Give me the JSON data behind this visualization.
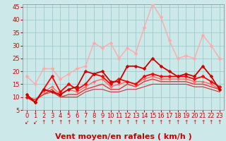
{
  "xlabel": "Vent moyen/en rafales ( km/h )",
  "background_color": "#cce8e8",
  "grid_color": "#99cccc",
  "xlim": [
    -0.5,
    23.5
  ],
  "ylim": [
    5,
    46
  ],
  "yticks": [
    5,
    10,
    15,
    20,
    25,
    30,
    35,
    40,
    45
  ],
  "xticks": [
    0,
    1,
    2,
    3,
    4,
    5,
    6,
    7,
    8,
    9,
    10,
    11,
    12,
    13,
    14,
    15,
    16,
    17,
    18,
    19,
    20,
    21,
    22,
    23
  ],
  "lines": [
    {
      "x": [
        0,
        1,
        2,
        3,
        4,
        5,
        6,
        7,
        8,
        9,
        10,
        11,
        12,
        13,
        14,
        15,
        16,
        17,
        18,
        19,
        20,
        21,
        22,
        23
      ],
      "y": [
        18,
        15,
        21,
        21,
        17,
        19,
        21,
        22,
        31,
        29,
        31,
        25,
        29,
        27,
        37,
        46,
        41,
        32,
        25,
        26,
        25,
        34,
        30,
        25
      ],
      "color": "#ffaaaa",
      "lw": 1.0,
      "marker": "D",
      "ms": 2.5,
      "zorder": 3
    },
    {
      "x": [
        0,
        1,
        2,
        3,
        4,
        5,
        6,
        7,
        8,
        9,
        10,
        11,
        12,
        13,
        14,
        15,
        16,
        17,
        18,
        19,
        20,
        21,
        22,
        23
      ],
      "y": [
        11,
        8,
        13,
        12,
        11,
        13,
        14,
        20,
        19,
        20,
        16,
        16,
        22,
        22,
        21,
        25,
        22,
        20,
        18,
        19,
        18,
        22,
        18,
        13
      ],
      "color": "#cc0000",
      "lw": 1.3,
      "marker": "D",
      "ms": 2.5,
      "zorder": 5
    },
    {
      "x": [
        0,
        1,
        2,
        3,
        4,
        5,
        6,
        7,
        8,
        9,
        10,
        11,
        12,
        13,
        14,
        15,
        16,
        17,
        18,
        19,
        20,
        21,
        22,
        23
      ],
      "y": [
        10,
        8,
        13,
        18,
        12,
        15,
        13,
        15,
        19,
        18,
        15,
        17,
        16,
        15,
        18,
        19,
        18,
        18,
        18,
        18,
        17,
        18,
        16,
        14
      ],
      "color": "#ff0000",
      "lw": 1.3,
      "marker": "D",
      "ms": 2.5,
      "zorder": 4
    },
    {
      "x": [
        0,
        1,
        2,
        3,
        4,
        5,
        6,
        7,
        8,
        9,
        10,
        11,
        12,
        13,
        14,
        15,
        16,
        17,
        18,
        19,
        20,
        21,
        22,
        23
      ],
      "y": [
        10,
        9,
        12,
        14,
        11,
        13,
        12,
        14,
        16,
        17,
        14,
        15,
        16,
        15,
        17,
        18,
        17,
        17,
        17,
        17,
        16,
        16,
        15,
        13
      ],
      "color": "#ff6666",
      "lw": 1.0,
      "marker": "D",
      "ms": 2.0,
      "zorder": 3
    },
    {
      "x": [
        0,
        1,
        2,
        3,
        4,
        5,
        6,
        7,
        8,
        9,
        10,
        11,
        12,
        13,
        14,
        15,
        16,
        17,
        18,
        19,
        20,
        21,
        22,
        23
      ],
      "y": [
        10,
        9,
        11,
        13,
        10,
        11,
        11,
        13,
        14,
        15,
        13,
        13,
        15,
        14,
        16,
        17,
        16,
        16,
        16,
        16,
        15,
        15,
        14,
        13
      ],
      "color": "#ee3333",
      "lw": 1.0,
      "marker": null,
      "ms": 0,
      "zorder": 3
    },
    {
      "x": [
        0,
        1,
        2,
        3,
        4,
        5,
        6,
        7,
        8,
        9,
        10,
        11,
        12,
        13,
        14,
        15,
        16,
        17,
        18,
        19,
        20,
        21,
        22,
        23
      ],
      "y": [
        10,
        9,
        11,
        12,
        10,
        10,
        10,
        12,
        13,
        13,
        12,
        12,
        13,
        13,
        14,
        15,
        15,
        15,
        15,
        15,
        14,
        14,
        13,
        12
      ],
      "color": "#cc3333",
      "lw": 0.8,
      "marker": null,
      "ms": 0,
      "zorder": 2
    }
  ],
  "arrow_symbols": [
    "↙",
    "↙",
    "↑",
    "↑",
    "↑",
    "↑",
    "↑",
    "↑",
    "↑",
    "↑",
    "↑",
    "↑",
    "↑",
    "↑",
    "↑",
    "↑",
    "↑",
    "↑",
    "↑",
    "↑",
    "↑",
    "↑",
    "↑",
    "↑"
  ],
  "arrow_color": "#cc0000",
  "xlabel_fontsize": 8,
  "tick_fontsize": 6,
  "tick_color": "#cc0000"
}
